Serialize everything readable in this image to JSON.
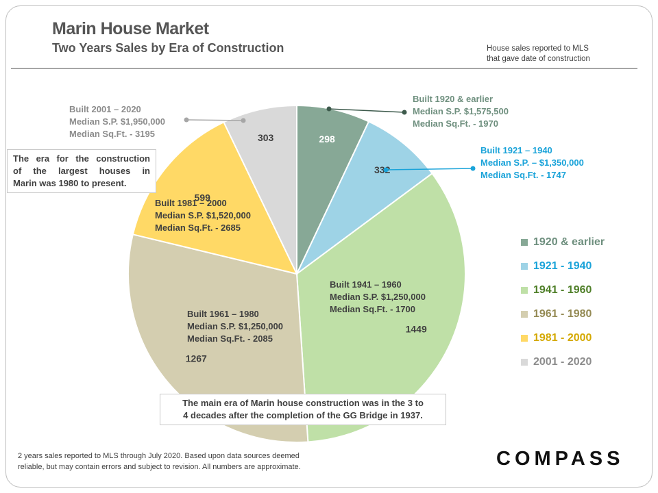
{
  "header": {
    "title": "Marin House Market",
    "subtitle": "Two Years Sales by Era of Construction",
    "note_line1": "House sales reported to MLS",
    "note_line2": "that gave date of construction"
  },
  "chart_data": {
    "type": "pie",
    "start": "top",
    "direction": "clockwise",
    "slices": [
      {
        "label": "1920 & earlier",
        "value": 298,
        "color": "#87a896",
        "annotation": [
          "Built 1920 & earlier",
          "Median S.P. $1,575,500",
          "Median Sq.Ft. - 1970"
        ],
        "annotation_color": "#6e8f7e"
      },
      {
        "label": "1921 - 1940",
        "value": 332,
        "color": "#9ed3e6",
        "annotation": [
          "Built 1921 – 1940",
          "Median S.P. – $1,350,000",
          "Median Sq.Ft. - 1747"
        ],
        "annotation_color": "#1aa3d9"
      },
      {
        "label": "1941 - 1960",
        "value": 1449,
        "color": "#bfe0a7",
        "annotation": [
          "Built 1941 – 1960",
          "Median S.P. $1,250,000",
          "Median Sq.Ft. - 1700"
        ],
        "annotation_color": "#404040"
      },
      {
        "label": "1961 - 1980",
        "value": 1267,
        "color": "#d4ceb0",
        "annotation": [
          "Built 1961 – 1980",
          "Median S.P. $1,250,000",
          "Median Sq.Ft. - 2085"
        ],
        "annotation_color": "#404040"
      },
      {
        "label": "1981 - 2000",
        "value": 599,
        "color": "#ffd966",
        "annotation": [
          "Built 1981 – 2000",
          "Median S.P. $1,520,000",
          "Median Sq.Ft. - 2685"
        ],
        "annotation_color": "#404040"
      },
      {
        "label": "2001 - 2020",
        "value": 303,
        "color": "#d9d9d9",
        "annotation": [
          "Built 2001 – 2020",
          "Median S.P. $1,950,000",
          "Median Sq.Ft. - 3195"
        ],
        "annotation_color": "#8c8c8c"
      }
    ],
    "legend": {
      "position": "right",
      "items": [
        {
          "label": "1920 & earlier",
          "color": "#87a896",
          "text_color": "#6e8f7e"
        },
        {
          "label": "1921 - 1940",
          "color": "#9ed3e6",
          "text_color": "#1aa3d9"
        },
        {
          "label": "1941 - 1960",
          "color": "#bfe0a7",
          "text_color": "#4f7f28"
        },
        {
          "label": "1961 - 1980",
          "color": "#d4ceb0",
          "text_color": "#948a54"
        },
        {
          "label": "1981 - 2000",
          "color": "#ffd966",
          "text_color": "#d4a800"
        },
        {
          "label": "2001 - 2020",
          "color": "#d9d9d9",
          "text_color": "#8c8c8c"
        }
      ]
    }
  },
  "callouts": {
    "largest_houses": [
      "The era for the construction",
      "of the largest houses in",
      "Marin was 1980 to present."
    ],
    "main_era": [
      "The main era of Marin house construction was in the 3 to",
      "4 decades after the completion of the GG Bridge in 1937."
    ]
  },
  "footer": {
    "disclaimer_line1": "2 years sales reported to MLS through July 2020. Based upon data sources deemed",
    "disclaimer_line2": "reliable, but may contain errors and subject to revision. All numbers are approximate.",
    "brand": "COMPASS"
  }
}
